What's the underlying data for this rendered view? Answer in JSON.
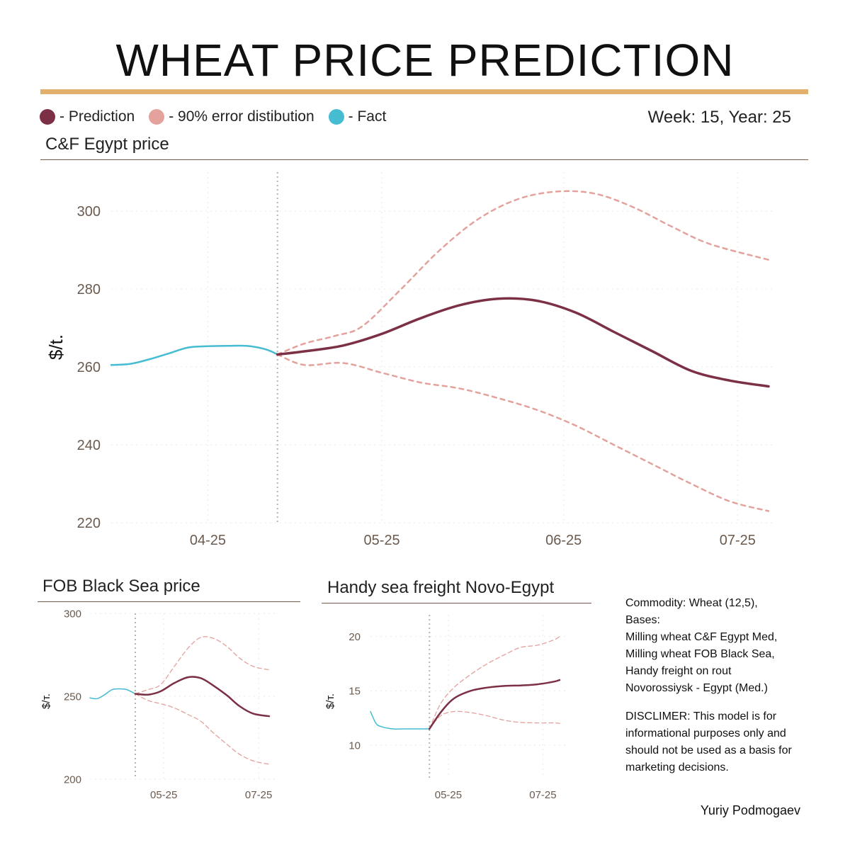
{
  "title": "WHEAT PRICE PREDICTION",
  "legend": {
    "prediction": "- Prediction",
    "error": "- 90% error distibution",
    "fact": "- Fact"
  },
  "week_label": "Week: 15, Year: 25",
  "colors": {
    "prediction": "#7b3045",
    "error": "#e3a29c",
    "fact": "#45bcd2",
    "accent": "#e4b06e"
  },
  "info": {
    "commodity_lines": [
      "Commodity: Wheat (12,5),",
      "Bases:",
      "Milling wheat C&F Egypt Med,",
      "Milling wheat FOB Black Sea,",
      "Handy freight on rout",
      "Novorossiysk - Egypt (Med.)"
    ],
    "disclaimer_lines": [
      "DISCLIMER:  This model is for",
      "informational purposes only and",
      "should not be used as a basis for",
      "marketing decisions."
    ]
  },
  "author": "Yuriy Podmogaev",
  "chart_data": [
    {
      "id": "egypt",
      "type": "line",
      "title": "C&F Egypt price",
      "ylabel": "$/t.",
      "xlim": [
        0,
        17
      ],
      "ylim": [
        220,
        310
      ],
      "yticks": [
        220,
        240,
        260,
        280,
        300
      ],
      "xticks": [
        {
          "x": 2.5,
          "label": "04-25"
        },
        {
          "x": 7,
          "label": "05-25"
        },
        {
          "x": 11.7,
          "label": "06-25"
        },
        {
          "x": 16.2,
          "label": "07-25"
        }
      ],
      "forecast_start_x": 4.3,
      "series": [
        {
          "name": "Fact",
          "x": [
            0,
            0.5,
            1,
            1.5,
            2,
            2.5,
            3,
            3.5,
            4,
            4.3
          ],
          "values": [
            260.5,
            260.8,
            262,
            263.5,
            265,
            265.3,
            265.4,
            265.4,
            264.5,
            263.2
          ]
        },
        {
          "name": "Prediction",
          "x": [
            4.3,
            5,
            6,
            7,
            8,
            9,
            10,
            11,
            12,
            13,
            14,
            15,
            16,
            17
          ],
          "values": [
            263.2,
            264,
            265.5,
            268.5,
            272.5,
            275.8,
            277.5,
            277,
            274,
            269,
            264,
            259,
            256.5,
            255
          ]
        },
        {
          "name": "Upper 90%",
          "x": [
            4.3,
            5,
            5.8,
            6.5,
            7.5,
            8.5,
            9.5,
            10.5,
            11.5,
            12.5,
            13.5,
            14.5,
            15.5,
            17
          ],
          "values": [
            263.2,
            266,
            268,
            270.5,
            280,
            290,
            298,
            303,
            305,
            304.5,
            301,
            296,
            291.5,
            287.5
          ]
        },
        {
          "name": "Lower 90%",
          "x": [
            4.3,
            5,
            6,
            7,
            8,
            9,
            10,
            11,
            12,
            13,
            14,
            15,
            16,
            17
          ],
          "values": [
            263.2,
            260.5,
            261,
            258.5,
            256,
            254.5,
            252,
            249,
            245,
            240,
            235,
            230,
            225.5,
            223
          ]
        }
      ]
    },
    {
      "id": "fob",
      "type": "line",
      "title": "FOB Black Sea price",
      "ylabel": "$/т.",
      "xlim": [
        0,
        17
      ],
      "ylim": [
        200,
        300
      ],
      "yticks": [
        200,
        250,
        300
      ],
      "xticks": [
        {
          "x": 7,
          "label": "05-25"
        },
        {
          "x": 16,
          "label": "07-25"
        }
      ],
      "forecast_start_x": 4.3,
      "series": [
        {
          "name": "Fact",
          "x": [
            0,
            0.7,
            1.4,
            2.1,
            2.8,
            3.5,
            4.3
          ],
          "values": [
            249,
            248.6,
            251,
            254,
            254.5,
            254,
            251.5
          ]
        },
        {
          "name": "Prediction",
          "x": [
            4.3,
            5.5,
            6.7,
            8,
            9.3,
            10.5,
            11.7,
            13,
            14.2,
            15.5,
            17
          ],
          "values": [
            251.5,
            251,
            253,
            258,
            261.5,
            261,
            256.5,
            250.5,
            244,
            239.5,
            238
          ]
        },
        {
          "name": "Upper 90%",
          "x": [
            4.3,
            5.5,
            6.7,
            8,
            9.3,
            10.5,
            11.7,
            13,
            14.2,
            15.5,
            17
          ],
          "values": [
            251.5,
            254,
            257,
            268,
            279,
            285.5,
            285,
            280,
            273,
            268,
            266
          ]
        },
        {
          "name": "Lower 90%",
          "x": [
            4.3,
            5.5,
            6.7,
            8,
            9.3,
            10.5,
            11.7,
            13,
            14.2,
            15.5,
            17
          ],
          "values": [
            251.5,
            247.5,
            245.5,
            243,
            239,
            235,
            228,
            221,
            215,
            211,
            209
          ]
        }
      ]
    },
    {
      "id": "freight",
      "type": "line",
      "title": "Handy sea freight Novo-Egypt",
      "ylabel": "$/т.",
      "xlim": [
        0,
        17
      ],
      "ylim": [
        7,
        22
      ],
      "yticks": [
        10,
        15,
        20
      ],
      "xticks": [
        {
          "x": 7,
          "label": "05-25"
        },
        {
          "x": 15.5,
          "label": "07-25"
        }
      ],
      "forecast_start_x": 5.3,
      "series": [
        {
          "name": "Fact",
          "x": [
            0,
            0.5,
            1,
            2,
            3,
            4,
            5.3
          ],
          "values": [
            13.1,
            12,
            11.7,
            11.5,
            11.5,
            11.5,
            11.5
          ]
        },
        {
          "name": "Prediction",
          "x": [
            5.3,
            6.3,
            7.5,
            9,
            10.5,
            12,
            13.5,
            15,
            16.5,
            17
          ],
          "values": [
            11.5,
            13,
            14.3,
            15,
            15.3,
            15.45,
            15.5,
            15.6,
            15.85,
            16
          ]
        },
        {
          "name": "Upper 90%",
          "x": [
            5.3,
            6.3,
            7.5,
            9,
            10.5,
            12,
            13.5,
            15,
            16.5,
            17
          ],
          "values": [
            11.5,
            13.8,
            15.3,
            16.5,
            17.5,
            18.3,
            19,
            19.2,
            19.7,
            20
          ]
        },
        {
          "name": "Lower 90%",
          "x": [
            5.3,
            6.3,
            7.5,
            9,
            10.5,
            12,
            13.5,
            15,
            16.5,
            17
          ],
          "values": [
            11.5,
            12.7,
            13.1,
            13,
            12.7,
            12.3,
            12.1,
            12.05,
            12.05,
            12
          ]
        }
      ]
    }
  ]
}
